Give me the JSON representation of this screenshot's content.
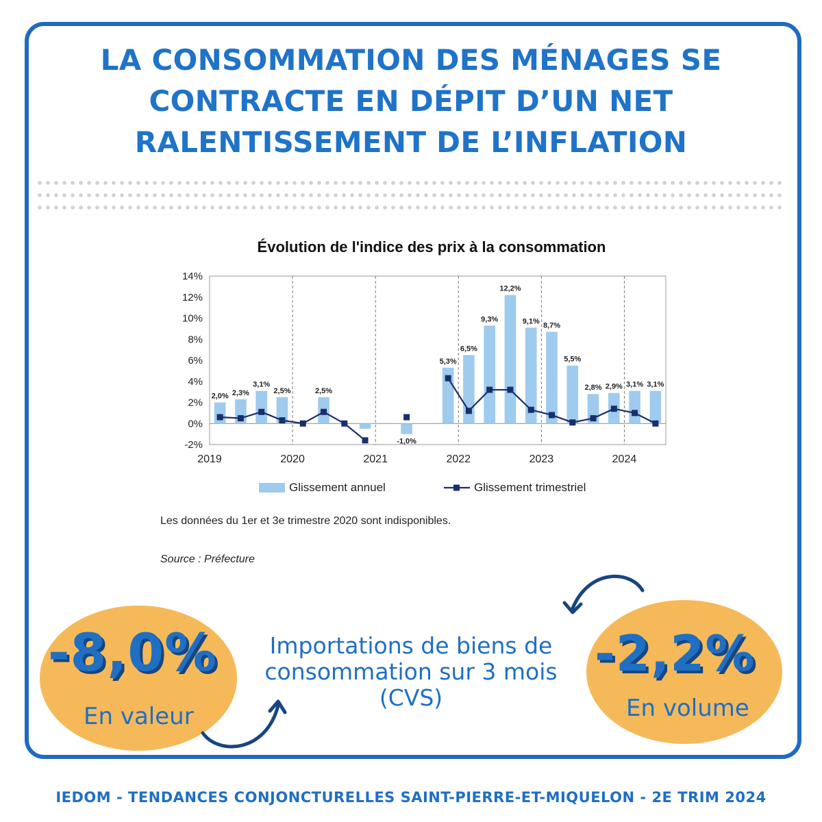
{
  "headline": {
    "line1": "LA CONSOMMATION DES MÉNAGES SE",
    "line2": "CONTRACTE EN DÉPIT D’UN NET",
    "line3": "RALENTISSEMENT DE L’INFLATION"
  },
  "colors": {
    "frame": "#1f6bc0",
    "headline": "#1f73c8",
    "bar": "#9fcbee",
    "line": "#1a2e6b",
    "bubble": "#f6b95a",
    "accent_text": "#1f6fc4"
  },
  "chart_data": {
    "type": "bar",
    "title": "Évolution de l'indice des prix à la consommation",
    "xlabel": "",
    "ylabel": "",
    "ylim": [
      -2,
      14
    ],
    "y_ticks": [
      "-2%",
      "0%",
      "2%",
      "4%",
      "6%",
      "8%",
      "10%",
      "12%",
      "14%"
    ],
    "x_tick_labels": [
      "2019",
      "2020",
      "2021",
      "2022",
      "2023",
      "2024"
    ],
    "grid": "vertical dashed at year boundaries",
    "legend_placement": "bottom",
    "categories": [
      "2019T1",
      "2019T2",
      "2019T3",
      "2019T4",
      "2020T1",
      "2020T2",
      "2020T3",
      "2020T4",
      "2021T1",
      "2021T2",
      "2021T3",
      "2021T4",
      "2022T1",
      "2022T2",
      "2022T3",
      "2022T4",
      "2023T1",
      "2023T2",
      "2023T3",
      "2023T4",
      "2024T1",
      "2024T2"
    ],
    "series": [
      {
        "name": "Glissement annuel",
        "type": "bar",
        "values": [
          2.0,
          2.3,
          3.1,
          2.5,
          null,
          2.5,
          null,
          -0.5,
          null,
          -1.0,
          null,
          5.3,
          6.5,
          9.3,
          12.2,
          9.1,
          8.7,
          5.5,
          2.8,
          2.9,
          3.1,
          3.1
        ],
        "labels": [
          "2,0%",
          "2,3%",
          "3,1%",
          "2,5%",
          "",
          "2,5%",
          "",
          "",
          "",
          "-1,0%",
          "",
          "5,3%",
          "6,5%",
          "9,3%",
          "12,2%",
          "9,1%",
          "8,7%",
          "5,5%",
          "2,8%",
          "2,9%",
          "3,1%",
          "3,1%"
        ]
      },
      {
        "name": "Glissement trimestriel",
        "type": "line",
        "values": [
          0.6,
          0.5,
          1.1,
          0.3,
          0.0,
          1.1,
          0.0,
          -1.6,
          null,
          0.6,
          null,
          4.3,
          1.2,
          3.2,
          3.2,
          1.3,
          0.8,
          0.1,
          0.5,
          1.4,
          1.0,
          0.0
        ],
        "breaks_after": [
          7,
          9
        ]
      }
    ]
  },
  "note": "Les données du 1er et 3e trimestre 2020 sont indisponibles.",
  "source": "Source : Préfecture",
  "stats": {
    "left_value": "-8,0%",
    "left_label": "En valeur",
    "center_text_line1": "Importations de biens de",
    "center_text_line2": "consommation sur 3 mois",
    "center_text_line3": "(CVS)",
    "right_value": "-2,2%",
    "right_label": "En volume"
  },
  "footer": "IEDOM - TENDANCES CONJONCTURELLES SAINT-PIERRE-ET-MIQUELON - 2E TRIM 2024"
}
